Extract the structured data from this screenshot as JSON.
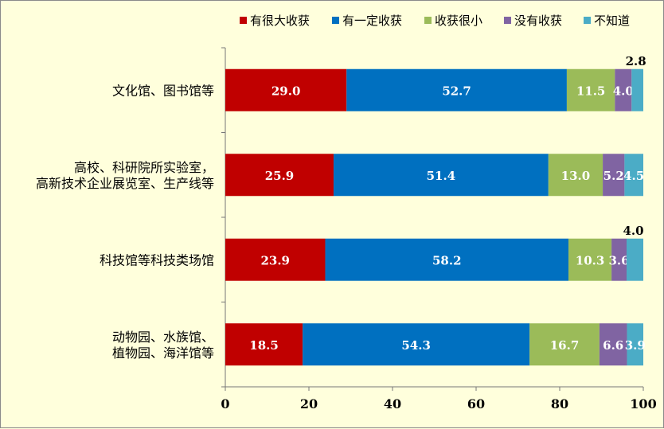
{
  "chart_data": {
    "type": "bar",
    "orientation": "horizontal",
    "stacked": true,
    "categories": [
      [
        "文化馆、图书馆等"
      ],
      [
        "高校、科研院所实验室，",
        "高新技术企业展览室、生产线等"
      ],
      [
        "科技馆等科技类场馆"
      ],
      [
        "动物园、水族馆、",
        "植物园、海洋馆等"
      ]
    ],
    "series": [
      {
        "name": "有很大收获",
        "color": "#c00000",
        "values": [
          29.0,
          25.9,
          23.9,
          18.5
        ]
      },
      {
        "name": "有一定收获",
        "color": "#0070c0",
        "values": [
          52.7,
          51.4,
          58.2,
          54.3
        ]
      },
      {
        "name": "收获很小",
        "color": "#9bbb59",
        "values": [
          11.5,
          13.0,
          10.3,
          16.7
        ]
      },
      {
        "name": "没有收获",
        "color": "#8064a2",
        "values": [
          4.0,
          5.2,
          3.6,
          6.6
        ]
      },
      {
        "name": "不知道",
        "color": "#4bacc6",
        "values": [
          2.8,
          4.5,
          4.0,
          3.9
        ]
      }
    ],
    "value_labels": [
      [
        "29.0",
        "52.7",
        "11.5",
        "4.0",
        "2.8"
      ],
      [
        "25.9",
        "51.4",
        "13.0",
        "5.2",
        "4.5"
      ],
      [
        "23.9",
        "58.2",
        "10.3",
        "3.6",
        "4.0"
      ],
      [
        "18.5",
        "54.3",
        "16.7",
        "6.6",
        "3.9"
      ]
    ],
    "outside_labels": [
      true,
      false,
      true,
      false
    ],
    "xlim": [
      0,
      100
    ],
    "xticks": [
      "0",
      "20",
      "40",
      "60",
      "80",
      "100"
    ],
    "legend": "top-right",
    "grid": false
  }
}
